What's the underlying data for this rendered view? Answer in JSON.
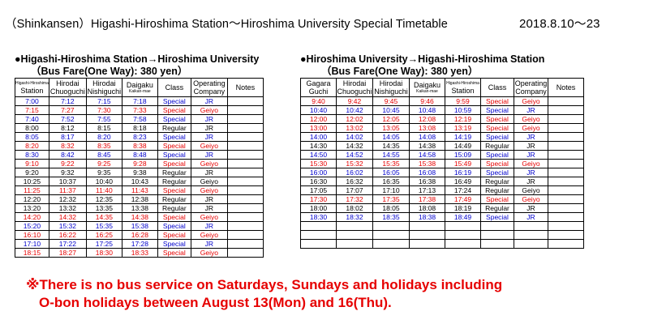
{
  "title": "（Shinkansen）Higashi-Hiroshima Station～Hiroshima University Special Timetable",
  "dates": "2018.8.10～23",
  "left": {
    "heading": "●Higashi-Hiroshima Station→Hiroshima University",
    "fare": "（Bus Fare(One Way): 380 yen）",
    "headers": [
      {
        "tiny": "Higashi-Hiroshima",
        "main": "Station"
      },
      {
        "line1": "Hirodai",
        "line2": "Chuoguchi"
      },
      {
        "line1": "Hirodai",
        "line2": "Nishiguchi"
      },
      {
        "line1": "Daigaku",
        "tiny": "Kaikan-mae"
      },
      {
        "main": "Class"
      },
      {
        "line1": "Operating",
        "line2": "Company"
      },
      {
        "main": "Notes"
      }
    ],
    "rows": [
      {
        "color": "blue",
        "cells": [
          "7:00",
          "7:12",
          "7:15",
          "7:18",
          "Special",
          "JR",
          ""
        ]
      },
      {
        "color": "red",
        "cells": [
          "7:15",
          "7:27",
          "7:30",
          "7:33",
          "Special",
          "Geiyo",
          ""
        ]
      },
      {
        "color": "blue",
        "cells": [
          "7:40",
          "7:52",
          "7:55",
          "7:58",
          "Special",
          "JR",
          ""
        ]
      },
      {
        "color": "black",
        "cells": [
          "8:00",
          "8:12",
          "8:15",
          "8:18",
          "Regular",
          "JR",
          ""
        ]
      },
      {
        "color": "blue",
        "cells": [
          "8:05",
          "8:17",
          "8:20",
          "8:23",
          "Special",
          "JR",
          ""
        ]
      },
      {
        "color": "red",
        "cells": [
          "8:20",
          "8:32",
          "8:35",
          "8:38",
          "Special",
          "Geiyo",
          ""
        ]
      },
      {
        "color": "blue",
        "cells": [
          "8:30",
          "8:42",
          "8:45",
          "8:48",
          "Special",
          "JR",
          ""
        ]
      },
      {
        "color": "red",
        "cells": [
          "9:10",
          "9:22",
          "9:25",
          "9:28",
          "Special",
          "Geiyo",
          ""
        ]
      },
      {
        "color": "black",
        "cells": [
          "9:20",
          "9:32",
          "9:35",
          "9:38",
          "Regular",
          "JR",
          ""
        ]
      },
      {
        "color": "black",
        "cells": [
          "10:25",
          "10:37",
          "10:40",
          "10:43",
          "Regular",
          "Geiyo",
          ""
        ]
      },
      {
        "color": "red",
        "cells": [
          "11:25",
          "11:37",
          "11:40",
          "11:43",
          "Special",
          "Geiyo",
          ""
        ]
      },
      {
        "color": "black",
        "cells": [
          "12:20",
          "12:32",
          "12:35",
          "12:38",
          "Regular",
          "JR",
          ""
        ]
      },
      {
        "color": "black",
        "cells": [
          "13:20",
          "13:32",
          "13:35",
          "13:38",
          "Regular",
          "JR",
          ""
        ]
      },
      {
        "color": "red",
        "cells": [
          "14:20",
          "14:32",
          "14:35",
          "14:38",
          "Special",
          "Geiyo",
          ""
        ]
      },
      {
        "color": "blue",
        "cells": [
          "15:20",
          "15:32",
          "15:35",
          "15:38",
          "Special",
          "JR",
          ""
        ]
      },
      {
        "color": "red",
        "cells": [
          "16:10",
          "16:22",
          "16:25",
          "16:28",
          "Special",
          "Geiyo",
          ""
        ]
      },
      {
        "color": "blue",
        "cells": [
          "17:10",
          "17:22",
          "17:25",
          "17:28",
          "Special",
          "JR",
          ""
        ]
      },
      {
        "color": "red",
        "cells": [
          "18:15",
          "18:27",
          "18:30",
          "18:33",
          "Special",
          "Geiyo",
          ""
        ]
      }
    ]
  },
  "right": {
    "heading": "●Hiroshima University→Higashi-Hiroshima Station",
    "fare": "（Bus Fare(One Way): 380 yen）",
    "headers": [
      {
        "line1": "Gagara",
        "line2": "Guchi"
      },
      {
        "line1": "Hirodai",
        "line2": "Chuoguchi"
      },
      {
        "line1": "Hirodai",
        "line2": "Nishiguchi"
      },
      {
        "line1": "Daigaku",
        "tiny": "Kaikan-mae"
      },
      {
        "tiny": "Higashi-Hiroshima",
        "main": "Station"
      },
      {
        "main": "Class"
      },
      {
        "line1": "Operating",
        "line2": "Company"
      },
      {
        "main": "Notes"
      }
    ],
    "rows": [
      {
        "color": "red",
        "cells": [
          "9:40",
          "9:42",
          "9:45",
          "9:46",
          "9:59",
          "Special",
          "Geiyo",
          ""
        ]
      },
      {
        "color": "blue",
        "cells": [
          "10:40",
          "10:42",
          "10:45",
          "10:48",
          "10:59",
          "Special",
          "JR",
          ""
        ]
      },
      {
        "color": "red",
        "cells": [
          "12:00",
          "12:02",
          "12:05",
          "12:08",
          "12:19",
          "Special",
          "Geiyo",
          ""
        ]
      },
      {
        "color": "red",
        "cells": [
          "13:00",
          "13:02",
          "13:05",
          "13:08",
          "13:19",
          "Special",
          "Geiyo",
          ""
        ]
      },
      {
        "color": "blue",
        "cells": [
          "14:00",
          "14:02",
          "14:05",
          "14:08",
          "14:19",
          "Special",
          "JR",
          ""
        ]
      },
      {
        "color": "black",
        "cells": [
          "14:30",
          "14:32",
          "14:35",
          "14:38",
          "14:49",
          "Regular",
          "JR",
          ""
        ]
      },
      {
        "color": "blue",
        "cells": [
          "14:50",
          "14:52",
          "14:55",
          "14:58",
          "15:09",
          "Special",
          "JR",
          ""
        ]
      },
      {
        "color": "red",
        "cells": [
          "15:30",
          "15:32",
          "15:35",
          "15:38",
          "15:49",
          "Special",
          "Geiyo",
          ""
        ]
      },
      {
        "color": "blue",
        "cells": [
          "16:00",
          "16:02",
          "16:05",
          "16:08",
          "16:19",
          "Special",
          "JR",
          ""
        ]
      },
      {
        "color": "black",
        "cells": [
          "16:30",
          "16:32",
          "16:35",
          "16:38",
          "16:49",
          "Regular",
          "JR",
          ""
        ]
      },
      {
        "color": "black",
        "cells": [
          "17:05",
          "17:07",
          "17:10",
          "17:13",
          "17:24",
          "Regular",
          "Geiyo",
          ""
        ]
      },
      {
        "color": "red",
        "cells": [
          "17:30",
          "17:32",
          "17:35",
          "17:38",
          "17:49",
          "Special",
          "Geiyo",
          ""
        ]
      },
      {
        "color": "black",
        "cells": [
          "18:00",
          "18:02",
          "18:05",
          "18:08",
          "18:19",
          "Regular",
          "JR",
          ""
        ]
      },
      {
        "color": "blue",
        "cells": [
          "18:30",
          "18:32",
          "18:35",
          "18:38",
          "18:49",
          "Special",
          "JR",
          ""
        ]
      }
    ],
    "empty_rows": 3
  },
  "notice": {
    "line1": "※There is no bus service on Saturdays, Sundays and holidays including",
    "line2": "O-bon holidays between August 13(Mon) and 16(Thu)."
  },
  "colors": {
    "red": "#e60000",
    "blue": "#0000cc",
    "black": "#000000"
  }
}
